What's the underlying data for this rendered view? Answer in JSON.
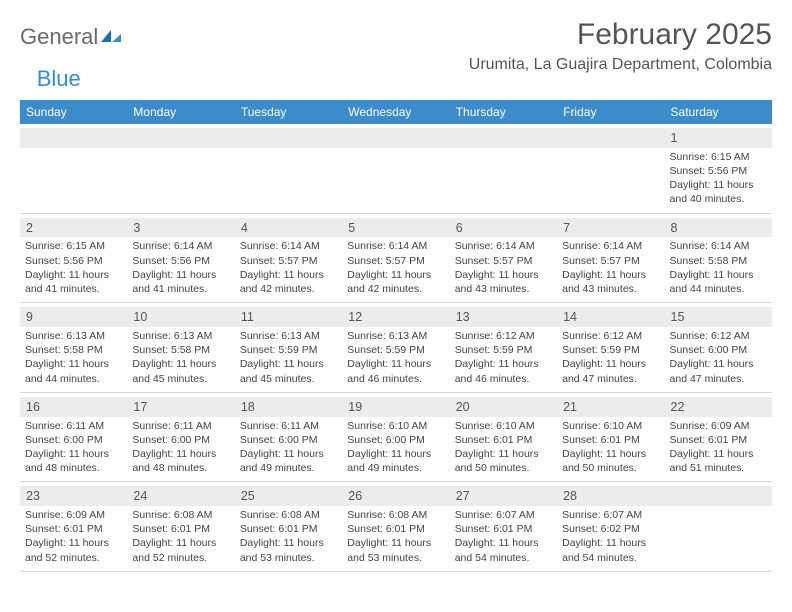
{
  "brand": {
    "name1": "General",
    "name2": "Blue"
  },
  "colors": {
    "accent": "#3b8cc9",
    "band": "#ececec",
    "text": "#444444",
    "header_text": "#ffffff",
    "border": "#d8d8d8",
    "bg": "#ffffff"
  },
  "title": "February 2025",
  "location": "Urumita, La Guajira Department, Colombia",
  "day_headers": [
    "Sunday",
    "Monday",
    "Tuesday",
    "Wednesday",
    "Thursday",
    "Friday",
    "Saturday"
  ],
  "weeks": [
    [
      {
        "n": "",
        "sr": "",
        "ss": "",
        "dl": ""
      },
      {
        "n": "",
        "sr": "",
        "ss": "",
        "dl": ""
      },
      {
        "n": "",
        "sr": "",
        "ss": "",
        "dl": ""
      },
      {
        "n": "",
        "sr": "",
        "ss": "",
        "dl": ""
      },
      {
        "n": "",
        "sr": "",
        "ss": "",
        "dl": ""
      },
      {
        "n": "",
        "sr": "",
        "ss": "",
        "dl": ""
      },
      {
        "n": "1",
        "sr": "Sunrise: 6:15 AM",
        "ss": "Sunset: 5:56 PM",
        "dl": "Daylight: 11 hours and 40 minutes."
      }
    ],
    [
      {
        "n": "2",
        "sr": "Sunrise: 6:15 AM",
        "ss": "Sunset: 5:56 PM",
        "dl": "Daylight: 11 hours and 41 minutes."
      },
      {
        "n": "3",
        "sr": "Sunrise: 6:14 AM",
        "ss": "Sunset: 5:56 PM",
        "dl": "Daylight: 11 hours and 41 minutes."
      },
      {
        "n": "4",
        "sr": "Sunrise: 6:14 AM",
        "ss": "Sunset: 5:57 PM",
        "dl": "Daylight: 11 hours and 42 minutes."
      },
      {
        "n": "5",
        "sr": "Sunrise: 6:14 AM",
        "ss": "Sunset: 5:57 PM",
        "dl": "Daylight: 11 hours and 42 minutes."
      },
      {
        "n": "6",
        "sr": "Sunrise: 6:14 AM",
        "ss": "Sunset: 5:57 PM",
        "dl": "Daylight: 11 hours and 43 minutes."
      },
      {
        "n": "7",
        "sr": "Sunrise: 6:14 AM",
        "ss": "Sunset: 5:57 PM",
        "dl": "Daylight: 11 hours and 43 minutes."
      },
      {
        "n": "8",
        "sr": "Sunrise: 6:14 AM",
        "ss": "Sunset: 5:58 PM",
        "dl": "Daylight: 11 hours and 44 minutes."
      }
    ],
    [
      {
        "n": "9",
        "sr": "Sunrise: 6:13 AM",
        "ss": "Sunset: 5:58 PM",
        "dl": "Daylight: 11 hours and 44 minutes."
      },
      {
        "n": "10",
        "sr": "Sunrise: 6:13 AM",
        "ss": "Sunset: 5:58 PM",
        "dl": "Daylight: 11 hours and 45 minutes."
      },
      {
        "n": "11",
        "sr": "Sunrise: 6:13 AM",
        "ss": "Sunset: 5:59 PM",
        "dl": "Daylight: 11 hours and 45 minutes."
      },
      {
        "n": "12",
        "sr": "Sunrise: 6:13 AM",
        "ss": "Sunset: 5:59 PM",
        "dl": "Daylight: 11 hours and 46 minutes."
      },
      {
        "n": "13",
        "sr": "Sunrise: 6:12 AM",
        "ss": "Sunset: 5:59 PM",
        "dl": "Daylight: 11 hours and 46 minutes."
      },
      {
        "n": "14",
        "sr": "Sunrise: 6:12 AM",
        "ss": "Sunset: 5:59 PM",
        "dl": "Daylight: 11 hours and 47 minutes."
      },
      {
        "n": "15",
        "sr": "Sunrise: 6:12 AM",
        "ss": "Sunset: 6:00 PM",
        "dl": "Daylight: 11 hours and 47 minutes."
      }
    ],
    [
      {
        "n": "16",
        "sr": "Sunrise: 6:11 AM",
        "ss": "Sunset: 6:00 PM",
        "dl": "Daylight: 11 hours and 48 minutes."
      },
      {
        "n": "17",
        "sr": "Sunrise: 6:11 AM",
        "ss": "Sunset: 6:00 PM",
        "dl": "Daylight: 11 hours and 48 minutes."
      },
      {
        "n": "18",
        "sr": "Sunrise: 6:11 AM",
        "ss": "Sunset: 6:00 PM",
        "dl": "Daylight: 11 hours and 49 minutes."
      },
      {
        "n": "19",
        "sr": "Sunrise: 6:10 AM",
        "ss": "Sunset: 6:00 PM",
        "dl": "Daylight: 11 hours and 49 minutes."
      },
      {
        "n": "20",
        "sr": "Sunrise: 6:10 AM",
        "ss": "Sunset: 6:01 PM",
        "dl": "Daylight: 11 hours and 50 minutes."
      },
      {
        "n": "21",
        "sr": "Sunrise: 6:10 AM",
        "ss": "Sunset: 6:01 PM",
        "dl": "Daylight: 11 hours and 50 minutes."
      },
      {
        "n": "22",
        "sr": "Sunrise: 6:09 AM",
        "ss": "Sunset: 6:01 PM",
        "dl": "Daylight: 11 hours and 51 minutes."
      }
    ],
    [
      {
        "n": "23",
        "sr": "Sunrise: 6:09 AM",
        "ss": "Sunset: 6:01 PM",
        "dl": "Daylight: 11 hours and 52 minutes."
      },
      {
        "n": "24",
        "sr": "Sunrise: 6:08 AM",
        "ss": "Sunset: 6:01 PM",
        "dl": "Daylight: 11 hours and 52 minutes."
      },
      {
        "n": "25",
        "sr": "Sunrise: 6:08 AM",
        "ss": "Sunset: 6:01 PM",
        "dl": "Daylight: 11 hours and 53 minutes."
      },
      {
        "n": "26",
        "sr": "Sunrise: 6:08 AM",
        "ss": "Sunset: 6:01 PM",
        "dl": "Daylight: 11 hours and 53 minutes."
      },
      {
        "n": "27",
        "sr": "Sunrise: 6:07 AM",
        "ss": "Sunset: 6:01 PM",
        "dl": "Daylight: 11 hours and 54 minutes."
      },
      {
        "n": "28",
        "sr": "Sunrise: 6:07 AM",
        "ss": "Sunset: 6:02 PM",
        "dl": "Daylight: 11 hours and 54 minutes."
      },
      {
        "n": "",
        "sr": "",
        "ss": "",
        "dl": ""
      }
    ]
  ]
}
